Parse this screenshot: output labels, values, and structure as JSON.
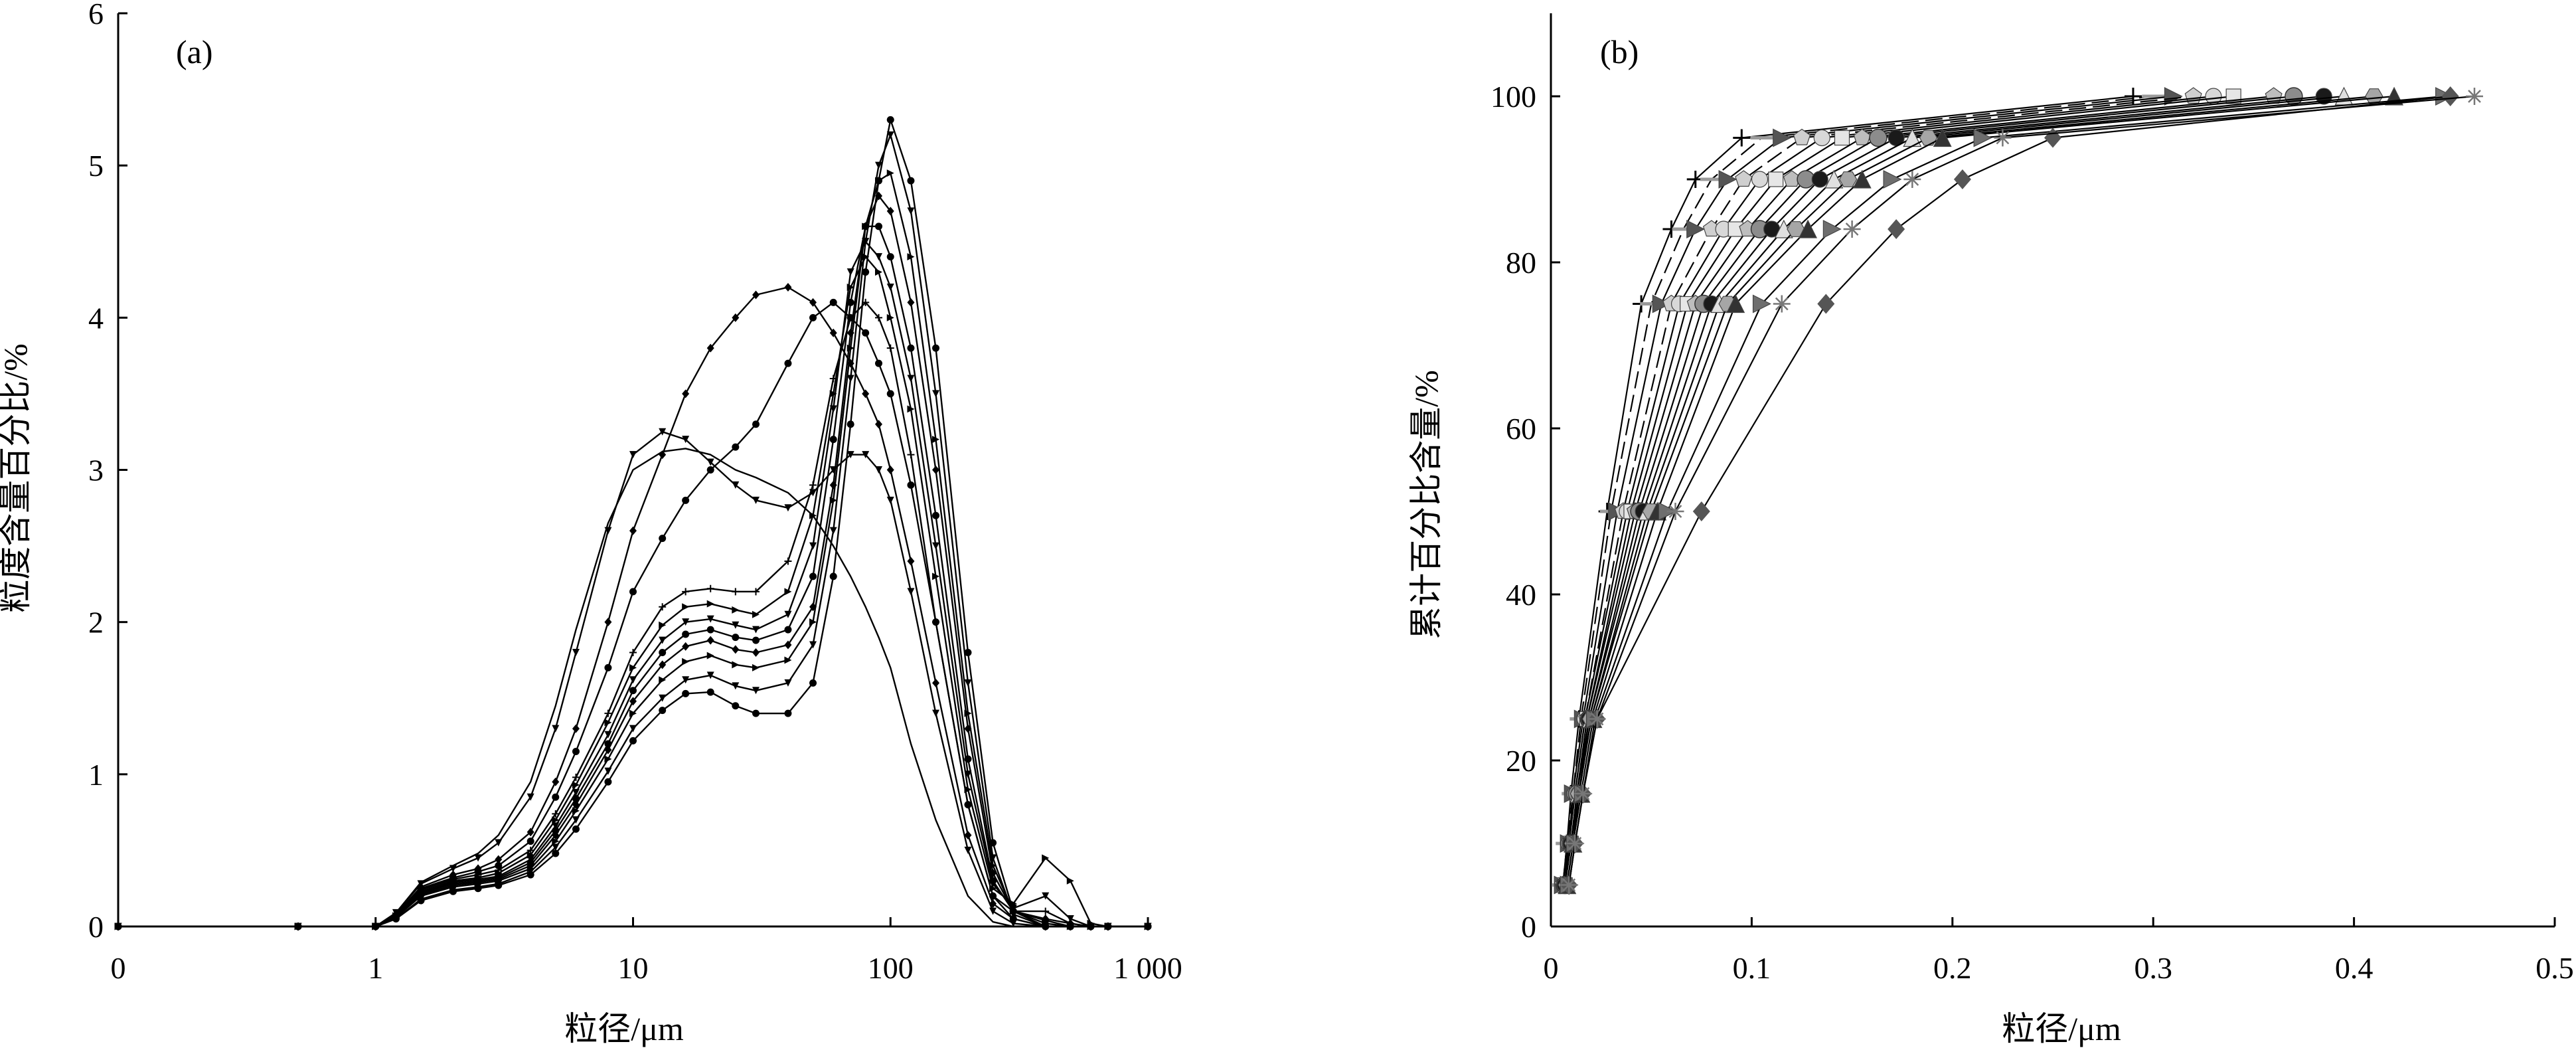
{
  "chart_data": [
    {
      "type": "line",
      "panel_label": "(a)",
      "xlabel": "粒径/μm",
      "ylabel": "粒度含量百分比/%",
      "x_scale": "log",
      "xlim": [
        0.1,
        1000
      ],
      "ylim": [
        0,
        6
      ],
      "x_tick_labels": [
        "0",
        "1",
        "10",
        "100",
        "1 000"
      ],
      "x_tick_values": [
        0.1,
        1,
        10,
        100,
        1000
      ],
      "y_ticks": [
        0,
        1,
        2,
        3,
        4,
        5,
        6
      ],
      "grid": false,
      "legend": "none",
      "x": [
        0.1,
        0.5,
        1.0,
        1.2,
        1.5,
        2,
        2.5,
        3,
        4,
        5,
        6,
        8,
        10,
        13,
        16,
        20,
        25,
        30,
        40,
        50,
        60,
        70,
        80,
        90,
        100,
        120,
        150,
        200,
        250,
        300,
        400,
        500,
        600,
        700,
        1000
      ],
      "series": [
        {
          "values": [
            0,
            0,
            0,
            0.05,
            0.17,
            0.23,
            0.25,
            0.27,
            0.34,
            0.48,
            0.64,
            0.95,
            1.22,
            1.42,
            1.53,
            1.54,
            1.45,
            1.4,
            1.4,
            1.6,
            2.3,
            3.3,
            4.3,
            4.9,
            5.3,
            4.9,
            3.8,
            1.8,
            0.55,
            0.1,
            0,
            0,
            0,
            0,
            0
          ]
        },
        {
          "values": [
            0,
            0,
            0,
            0.05,
            0.18,
            0.24,
            0.26,
            0.28,
            0.36,
            0.52,
            0.7,
            1.02,
            1.3,
            1.5,
            1.62,
            1.65,
            1.58,
            1.55,
            1.6,
            1.85,
            2.6,
            3.6,
            4.5,
            5.0,
            5.2,
            4.7,
            3.5,
            1.6,
            0.45,
            0.08,
            0,
            0,
            0,
            0,
            0
          ]
        },
        {
          "values": [
            0,
            0,
            0,
            0.06,
            0.2,
            0.26,
            0.28,
            0.3,
            0.38,
            0.56,
            0.76,
            1.1,
            1.4,
            1.62,
            1.74,
            1.78,
            1.72,
            1.7,
            1.75,
            2.0,
            2.8,
            3.8,
            4.6,
            4.9,
            4.95,
            4.4,
            3.2,
            1.4,
            0.4,
            0.1,
            0.02,
            0,
            0,
            0,
            0
          ]
        },
        {
          "values": [
            0,
            0,
            0,
            0.06,
            0.21,
            0.27,
            0.29,
            0.31,
            0.4,
            0.6,
            0.8,
            1.16,
            1.48,
            1.72,
            1.84,
            1.88,
            1.82,
            1.8,
            1.85,
            2.1,
            2.9,
            3.9,
            4.6,
            4.8,
            4.7,
            4.1,
            3.0,
            1.3,
            0.35,
            0.1,
            0.05,
            0.02,
            0,
            0,
            0
          ]
        },
        {
          "values": [
            0,
            0,
            0,
            0.06,
            0.22,
            0.28,
            0.3,
            0.32,
            0.42,
            0.63,
            0.84,
            1.2,
            1.55,
            1.8,
            1.92,
            1.95,
            1.9,
            1.88,
            1.95,
            2.3,
            3.2,
            4.1,
            4.6,
            4.6,
            4.4,
            3.8,
            2.7,
            1.1,
            0.3,
            0.1,
            0.04,
            0,
            0,
            0,
            0
          ]
        },
        {
          "values": [
            0,
            0,
            0,
            0.06,
            0.22,
            0.29,
            0.31,
            0.33,
            0.44,
            0.66,
            0.88,
            1.26,
            1.62,
            1.88,
            2.0,
            2.02,
            1.98,
            1.95,
            2.05,
            2.5,
            3.4,
            4.3,
            4.5,
            4.4,
            4.2,
            3.6,
            2.5,
            1.0,
            0.28,
            0.12,
            0.2,
            0.05,
            0,
            0,
            0
          ]
        },
        {
          "values": [
            0,
            0,
            0,
            0.07,
            0.23,
            0.3,
            0.32,
            0.35,
            0.47,
            0.7,
            0.93,
            1.34,
            1.7,
            1.98,
            2.1,
            2.12,
            2.08,
            2.05,
            2.2,
            2.7,
            3.5,
            4.2,
            4.4,
            4.3,
            4.0,
            3.4,
            2.3,
            0.9,
            0.25,
            0.15,
            0.45,
            0.3,
            0.02,
            0,
            0
          ]
        },
        {
          "values": [
            0,
            0,
            0,
            0.07,
            0.24,
            0.31,
            0.34,
            0.37,
            0.5,
            0.74,
            0.98,
            1.4,
            1.8,
            2.1,
            2.2,
            2.22,
            2.2,
            2.2,
            2.4,
            2.9,
            3.6,
            4.0,
            4.1,
            4.0,
            3.8,
            3.1,
            2.0,
            0.8,
            0.2,
            0.1,
            0.1,
            0.02,
            0,
            0,
            0
          ]
        },
        {
          "values": [
            0,
            0,
            0,
            0.07,
            0.25,
            0.32,
            0.36,
            0.4,
            0.56,
            0.85,
            1.15,
            1.7,
            2.2,
            2.55,
            2.8,
            3.0,
            3.15,
            3.3,
            3.7,
            4.0,
            4.1,
            4.0,
            3.9,
            3.7,
            3.5,
            2.9,
            2.0,
            0.8,
            0.2,
            0.05,
            0,
            0,
            0,
            0,
            0
          ]
        },
        {
          "values": [
            0,
            0,
            0,
            0.08,
            0.26,
            0.34,
            0.38,
            0.44,
            0.62,
            0.95,
            1.3,
            2.0,
            2.6,
            3.1,
            3.5,
            3.8,
            4.0,
            4.15,
            4.2,
            4.1,
            3.9,
            3.7,
            3.5,
            3.3,
            3.0,
            2.4,
            1.6,
            0.6,
            0.15,
            0.05,
            0,
            0,
            0,
            0,
            0
          ]
        },
        {
          "values": [
            0,
            0,
            0,
            0.09,
            0.28,
            0.38,
            0.45,
            0.55,
            0.85,
            1.3,
            1.8,
            2.6,
            3.1,
            3.25,
            3.2,
            3.05,
            2.9,
            2.8,
            2.75,
            2.85,
            3.0,
            3.1,
            3.1,
            3.0,
            2.8,
            2.2,
            1.4,
            0.5,
            0.1,
            0.02,
            0,
            0,
            0,
            0,
            0
          ]
        },
        {
          "values": [
            0,
            0,
            0,
            0.09,
            0.29,
            0.4,
            0.48,
            0.6,
            0.95,
            1.45,
            1.95,
            2.65,
            3.0,
            3.12,
            3.14,
            3.1,
            3.0,
            2.95,
            2.85,
            2.7,
            2.5,
            2.3,
            2.1,
            1.9,
            1.7,
            1.2,
            0.7,
            0.2,
            0.03,
            0,
            0,
            0,
            0,
            0,
            0
          ]
        }
      ]
    },
    {
      "type": "line",
      "panel_label": "(b)",
      "xlabel": "粒径/μm",
      "ylabel": "累计百分比含量/%",
      "xlim": [
        0,
        0.5
      ],
      "ylim": [
        0,
        110
      ],
      "x_ticks": [
        0,
        0.1,
        0.2,
        0.3,
        0.4,
        0.5
      ],
      "y_ticks": [
        0,
        20,
        40,
        60,
        80,
        100
      ],
      "grid": false,
      "legend": "none",
      "y": [
        5,
        10,
        16,
        25,
        50,
        75,
        84,
        90,
        95,
        100
      ],
      "series": [
        {
          "x": [
            0.006,
            0.008,
            0.01,
            0.014,
            0.028,
            0.045,
            0.06,
            0.072,
            0.095,
            0.29
          ],
          "marker": "plus",
          "color": "#000000"
        },
        {
          "x": [
            0.006,
            0.008,
            0.011,
            0.015,
            0.03,
            0.05,
            0.066,
            0.08,
            0.105,
            0.3
          ],
          "marker": "dash",
          "color": "#9a9a9a"
        },
        {
          "x": [
            0.006,
            0.009,
            0.011,
            0.016,
            0.033,
            0.055,
            0.072,
            0.088,
            0.115,
            0.31
          ],
          "marker": "triangle-right",
          "color": "#555555"
        },
        {
          "x": [
            0.006,
            0.009,
            0.012,
            0.017,
            0.036,
            0.06,
            0.08,
            0.096,
            0.125,
            0.32
          ],
          "marker": "pentagon",
          "color": "#cfcfcf"
        },
        {
          "x": [
            0.007,
            0.009,
            0.012,
            0.017,
            0.038,
            0.064,
            0.086,
            0.104,
            0.135,
            0.33
          ],
          "marker": "circle",
          "color": "#d8d8d8"
        },
        {
          "x": [
            0.007,
            0.01,
            0.013,
            0.018,
            0.04,
            0.068,
            0.092,
            0.112,
            0.145,
            0.34
          ],
          "marker": "square",
          "color": "#e6e6e6"
        },
        {
          "x": [
            0.007,
            0.01,
            0.013,
            0.018,
            0.042,
            0.072,
            0.098,
            0.12,
            0.155,
            0.36
          ],
          "marker": "pentagon",
          "color": "#bdbdbd"
        },
        {
          "x": [
            0.007,
            0.01,
            0.013,
            0.019,
            0.044,
            0.076,
            0.104,
            0.127,
            0.163,
            0.37
          ],
          "marker": "circle-shaded",
          "color": "#8c8c8c"
        },
        {
          "x": [
            0.007,
            0.01,
            0.014,
            0.019,
            0.046,
            0.08,
            0.11,
            0.134,
            0.172,
            0.385
          ],
          "marker": "circle",
          "color": "#1a1a1a"
        },
        {
          "x": [
            0.008,
            0.011,
            0.014,
            0.02,
            0.048,
            0.084,
            0.116,
            0.141,
            0.18,
            0.395
          ],
          "marker": "triangle",
          "color": "#e0e0e0"
        },
        {
          "x": [
            0.008,
            0.011,
            0.014,
            0.02,
            0.05,
            0.088,
            0.122,
            0.148,
            0.188,
            0.41
          ],
          "marker": "hexagon",
          "color": "#a6a6a6"
        },
        {
          "x": [
            0.008,
            0.011,
            0.015,
            0.021,
            0.053,
            0.092,
            0.128,
            0.155,
            0.195,
            0.42
          ],
          "marker": "triangle",
          "color": "#333333"
        },
        {
          "x": [
            0.009,
            0.012,
            0.016,
            0.022,
            0.058,
            0.105,
            0.14,
            0.17,
            0.215,
            0.445
          ],
          "marker": "triangle-right",
          "color": "#6e6e6e"
        },
        {
          "x": [
            0.009,
            0.012,
            0.016,
            0.023,
            0.075,
            0.137,
            0.172,
            0.205,
            0.25,
            0.448
          ],
          "marker": "diamond",
          "color": "#555555"
        },
        {
          "x": [
            0.009,
            0.012,
            0.016,
            0.023,
            0.062,
            0.115,
            0.15,
            0.18,
            0.225,
            0.46
          ],
          "marker": "asterisk",
          "color": "#777777"
        }
      ]
    }
  ]
}
